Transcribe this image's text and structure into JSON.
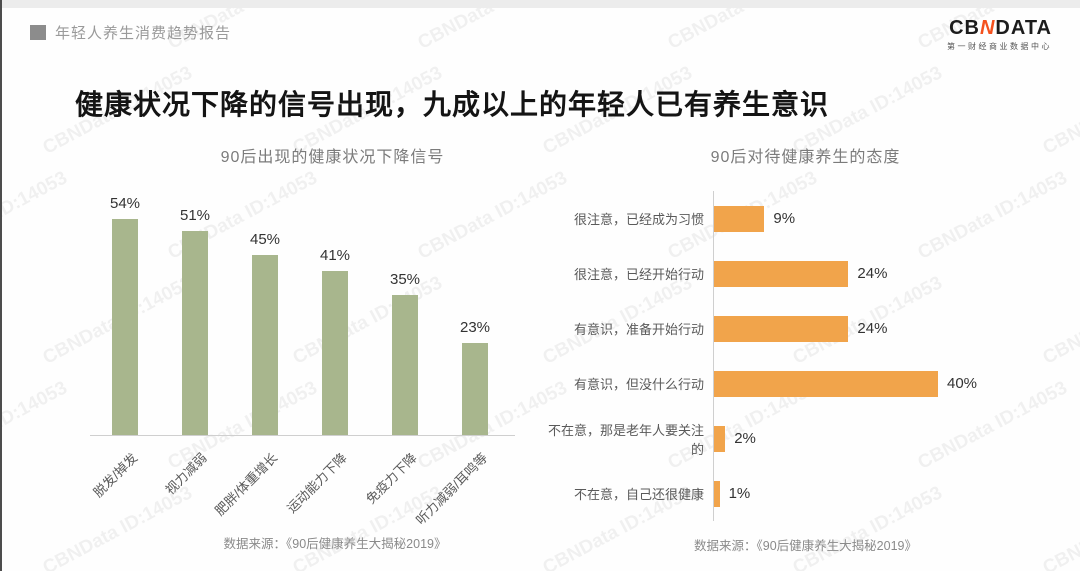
{
  "watermark": {
    "text": "CBNData ID:14053"
  },
  "header": {
    "report_title": "年轻人养生消费趋势报告",
    "logo": {
      "part_cb": "CB",
      "part_n": "N",
      "part_data": "DATA",
      "subtitle": "第一财经商业数据中心",
      "accent_color": "#f4511e"
    }
  },
  "main": {
    "title": "健康状况下降的信号出现，九成以上的年轻人已有养生意识"
  },
  "chart_data": [
    {
      "type": "bar",
      "title": "90后出现的健康状况下降信号",
      "categories": [
        "脱发/掉发",
        "视力减弱",
        "肥胖/体重增长",
        "运动能力下降",
        "免疫力下降",
        "听力减弱/耳鸣等"
      ],
      "values": [
        54,
        51,
        45,
        41,
        35,
        23
      ],
      "unit": "%",
      "ylim": [
        0,
        60
      ],
      "bar_color": "#a8b68d",
      "grid": false,
      "value_labels": "above bars",
      "source": "数据来源：《90后健康养生大揭秘2019》"
    },
    {
      "type": "bar",
      "orientation": "horizontal",
      "title": "90后对待健康养生的态度",
      "categories": [
        "很注意，已经成为习惯",
        "很注意，已经开始行动",
        "有意识，准备开始行动",
        "有意识，但没什么行动",
        "不在意，那是老年人要关注的",
        "不在意，自己还很健康"
      ],
      "values": [
        9,
        24,
        24,
        40,
        2,
        1
      ],
      "unit": "%",
      "xlim": [
        0,
        45
      ],
      "bar_color": "#f1a44b",
      "grid": false,
      "value_labels": "right of bars",
      "source": "数据来源：《90后健康养生大揭秘2019》"
    }
  ]
}
